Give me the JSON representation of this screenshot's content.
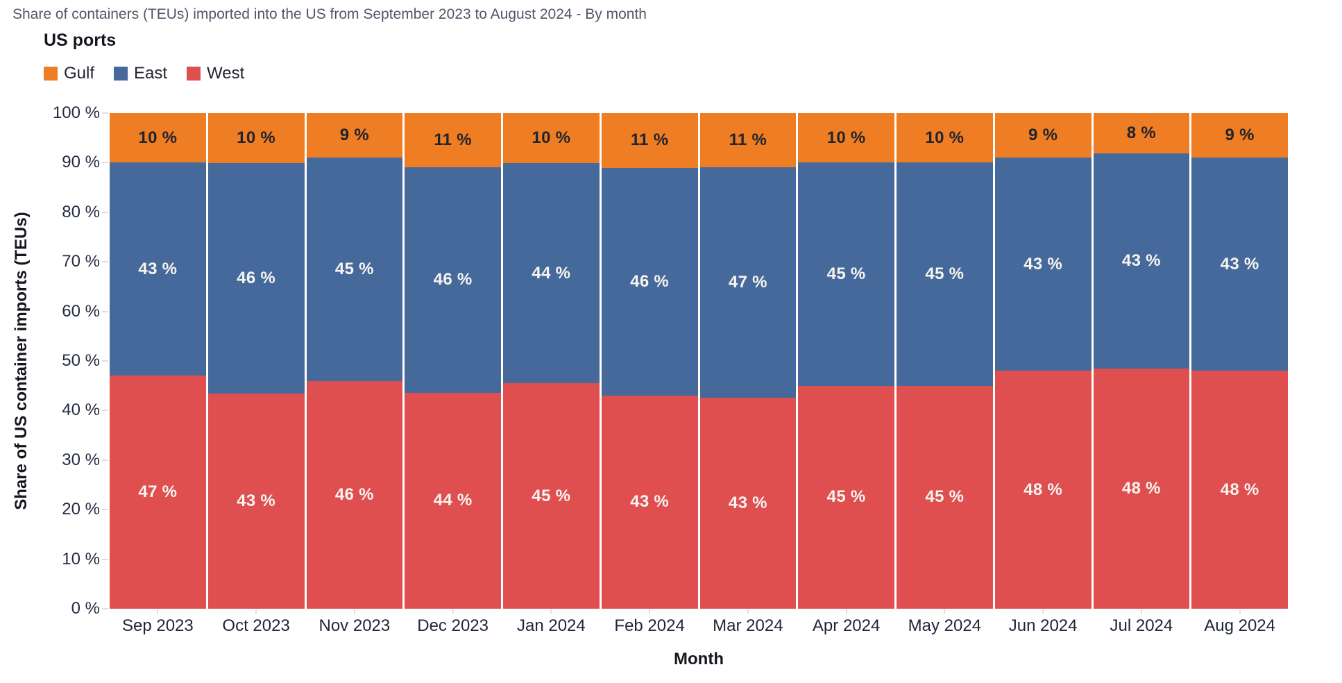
{
  "chart": {
    "title": "Share of containers (TEUs) imported into the US from September 2023 to August 2024 - By month",
    "legend_title": "US ports",
    "xlabel": "Month",
    "ylabel": "Share of US container imports (TEUs)"
  },
  "chart_data": {
    "type": "bar",
    "stacked": true,
    "orientation": "vertical",
    "title": "Share of containers (TEUs) imported into the US from September 2023 to August 2024 - By month",
    "xlabel": "Month",
    "ylabel": "Share of US container imports (TEUs)",
    "categories": [
      "Sep 2023",
      "Oct 2023",
      "Nov 2023",
      "Dec 2023",
      "Jan 2024",
      "Feb 2024",
      "Mar 2024",
      "Apr 2024",
      "May 2024",
      "Jun 2024",
      "Jul 2024",
      "Aug 2024"
    ],
    "series": [
      {
        "name": "West",
        "color": "#DF4F50",
        "label_color": "#F7F5F0",
        "values": [
          47,
          43,
          46,
          44,
          45,
          43,
          43,
          45,
          45,
          48,
          48,
          48
        ]
      },
      {
        "name": "East",
        "color": "#46699C",
        "label_color": "#F7F5F0",
        "values": [
          43,
          46,
          45,
          46,
          44,
          46,
          47,
          45,
          45,
          43,
          43,
          43
        ]
      },
      {
        "name": "Gulf",
        "color": "#EF7D23",
        "label_color": "#20242C",
        "values": [
          10,
          10,
          9,
          11,
          10,
          11,
          11,
          10,
          10,
          9,
          8,
          9
        ]
      }
    ],
    "stack_order_bottom_to_top": [
      "West",
      "East",
      "Gulf"
    ],
    "legend_order": [
      "Gulf",
      "East",
      "West"
    ],
    "value_suffix": " %",
    "ylim": [
      0,
      100
    ],
    "ytick_step": 10,
    "ytick_labels": [
      "0 %",
      "10 %",
      "20 %",
      "30 %",
      "40 %",
      "50 %",
      "60 %",
      "70 %",
      "80 %",
      "90 %",
      "100 %"
    ],
    "legend_position": "top-left",
    "grid": false
  },
  "style": {
    "title_color": "#4F5767",
    "axis_text_color": "#252A41",
    "axis_title_color": "#14181E",
    "tick_color": "#DDDDDD"
  }
}
